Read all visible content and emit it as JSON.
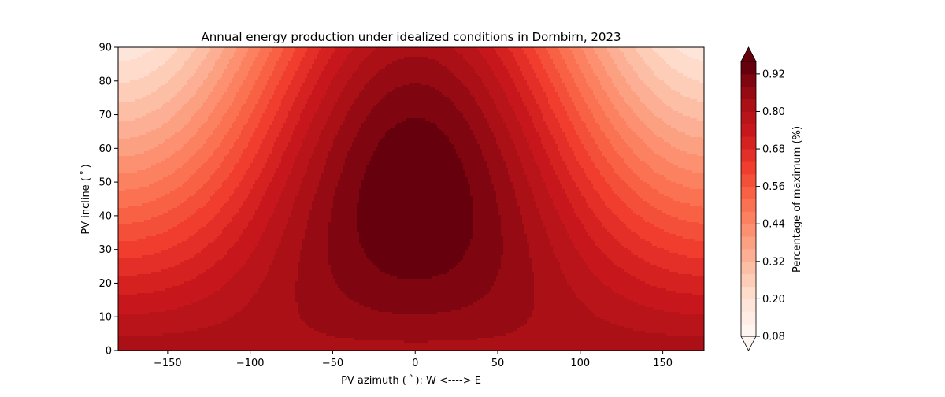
{
  "chart_data": {
    "type": "heatmap",
    "title": "Annual energy production under idealized conditions in Dornbirn, 2023",
    "xlabel": "PV azimuth ( ˚ ): W <----> E",
    "ylabel": "PV incline ( ˚ )",
    "xlim": [
      -180,
      175
    ],
    "ylim": [
      0,
      90
    ],
    "xticks": [
      -150,
      -100,
      -50,
      0,
      50,
      100,
      150
    ],
    "xtick_labels": [
      "−150",
      "−100",
      "−50",
      "0",
      "50",
      "100",
      "150"
    ],
    "yticks": [
      0,
      10,
      20,
      30,
      40,
      50,
      60,
      70,
      80,
      90
    ],
    "ytick_labels": [
      "0",
      "10",
      "20",
      "30",
      "40",
      "50",
      "60",
      "70",
      "80",
      "90"
    ],
    "colormap": "Reds",
    "contour_levels": [
      0.08,
      0.12,
      0.16,
      0.2,
      0.24,
      0.28,
      0.32,
      0.36,
      0.4,
      0.44,
      0.48,
      0.52,
      0.56,
      0.6,
      0.64,
      0.68,
      0.72,
      0.76,
      0.8,
      0.84,
      0.88,
      0.92,
      0.96
    ],
    "colorbar": {
      "label": "Percentage of maximum (%)",
      "ticks": [
        0.08,
        0.2,
        0.32,
        0.44,
        0.56,
        0.68,
        0.8,
        0.92
      ],
      "tick_labels": [
        "0.08",
        "0.20",
        "0.32",
        "0.44",
        "0.56",
        "0.68",
        "0.80",
        "0.92"
      ],
      "extend": "both"
    },
    "peak": {
      "azimuth": 0,
      "incline": 45,
      "value": 0.96
    },
    "grid": false
  }
}
